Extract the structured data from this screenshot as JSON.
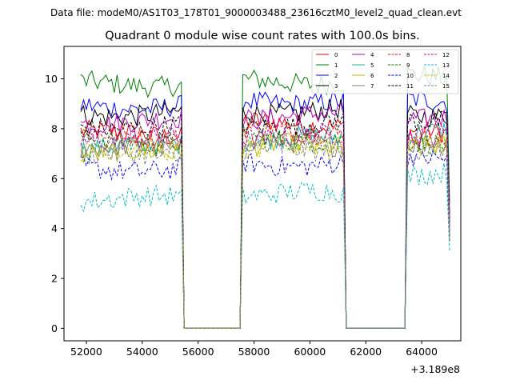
{
  "chart_data": {
    "type": "line",
    "suptitle": "Data file: modeM0/AS1T03_178T01_9000003488_23616cztM0_level2_quad_clean.evt",
    "title": "Quadrant 0 module wise count rates with 100.0s bins.",
    "xlabel": "",
    "ylabel": "",
    "x_offset_label": "+3.189e8",
    "xlim": [
      51200,
      65400
    ],
    "ylim": [
      -0.5,
      11.3
    ],
    "xticks": [
      52000,
      54000,
      56000,
      58000,
      60000,
      62000,
      64000
    ],
    "xtick_labels": [
      "52000",
      "54000",
      "56000",
      "58000",
      "60000",
      "62000",
      "64000"
    ],
    "yticks": [
      0,
      2,
      4,
      6,
      8,
      10
    ],
    "ytick_labels": [
      "0",
      "2",
      "4",
      "6",
      "8",
      "10"
    ],
    "grid": false,
    "legend_position": "top-right",
    "segments": [
      {
        "start": 51800,
        "end": 55400
      },
      {
        "start": 57600,
        "end": 61200
      },
      {
        "start": 63500,
        "end": 65000
      }
    ],
    "gap_value": 0,
    "series": [
      {
        "name": "0",
        "color": "#ff0000",
        "dash": "solid",
        "levels": [
          7.8,
          8.2,
          7.8
        ]
      },
      {
        "name": "1",
        "color": "#008000",
        "dash": "solid",
        "levels": [
          9.8,
          9.9,
          10.1
        ]
      },
      {
        "name": "2",
        "color": "#0000ff",
        "dash": "solid",
        "levels": [
          8.9,
          9.1,
          9.2
        ]
      },
      {
        "name": "3",
        "color": "#000000",
        "dash": "solid",
        "levels": [
          8.6,
          8.7,
          8.6
        ]
      },
      {
        "name": "4",
        "color": "#bf00bf",
        "dash": "solid",
        "levels": [
          8.3,
          8.5,
          8.5
        ]
      },
      {
        "name": "5",
        "color": "#20b2aa",
        "dash": "solid",
        "levels": [
          7.3,
          7.6,
          7.9
        ]
      },
      {
        "name": "6",
        "color": "#bfbf00",
        "dash": "solid",
        "levels": [
          7.0,
          7.3,
          7.2
        ]
      },
      {
        "name": "7",
        "color": "#808080",
        "dash": "solid",
        "levels": [
          7.2,
          7.4,
          7.3
        ]
      },
      {
        "name": "8",
        "color": "#ff0000",
        "dash": "dashed",
        "levels": [
          7.7,
          7.9,
          7.6
        ]
      },
      {
        "name": "9",
        "color": "#008000",
        "dash": "dashed",
        "levels": [
          7.5,
          7.6,
          7.4
        ]
      },
      {
        "name": "10",
        "color": "#0000ff",
        "dash": "dashed",
        "levels": [
          6.4,
          6.6,
          6.9
        ]
      },
      {
        "name": "11",
        "color": "#000000",
        "dash": "dashed",
        "levels": [
          8.1,
          8.2,
          8.4
        ]
      },
      {
        "name": "12",
        "color": "#bf00bf",
        "dash": "dashed",
        "levels": [
          7.6,
          7.7,
          7.8
        ]
      },
      {
        "name": "13",
        "color": "#00bfbf",
        "dash": "dashed",
        "levels": [
          5.2,
          5.4,
          6.2
        ]
      },
      {
        "name": "14",
        "color": "#bfbf00",
        "dash": "dashed",
        "levels": [
          7.1,
          7.2,
          7.3
        ]
      },
      {
        "name": "15",
        "color": "#808080",
        "dash": "dashed",
        "levels": [
          6.9,
          7.1,
          7.0
        ]
      }
    ]
  }
}
